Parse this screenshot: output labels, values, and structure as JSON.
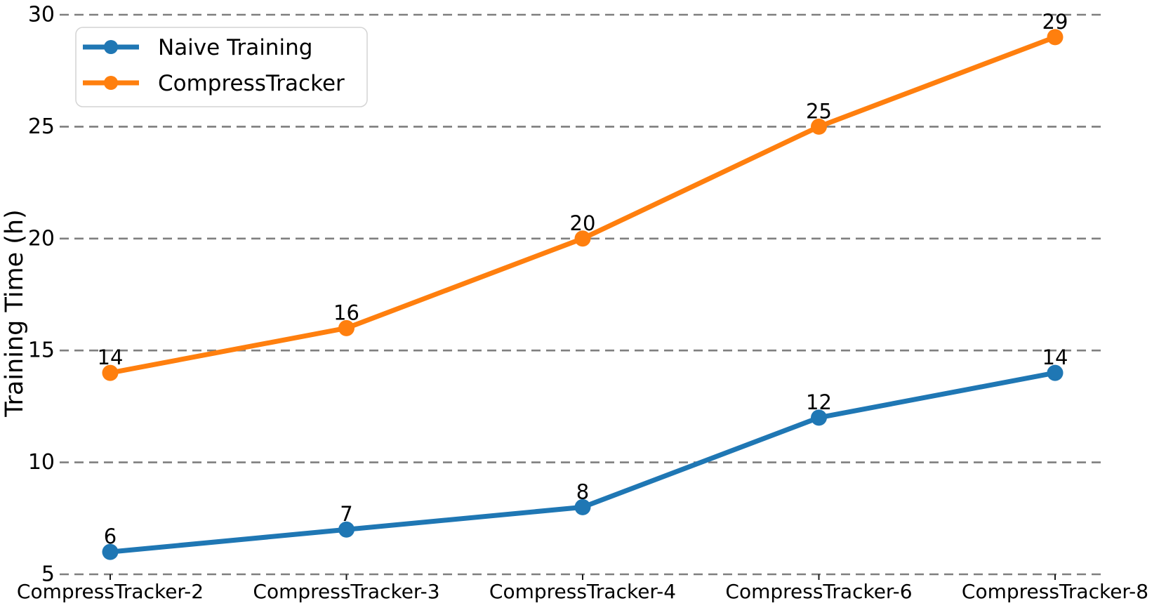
{
  "chart_data": {
    "type": "line",
    "title": "",
    "xlabel": "",
    "ylabel": "Training Time (h)",
    "categories": [
      "CompressTracker-2",
      "CompressTracker-3",
      "CompressTracker-4",
      "CompressTracker-6",
      "CompressTracker-8"
    ],
    "series": [
      {
        "name": "Naive Training",
        "color": "#1f77b4",
        "values": [
          6,
          7,
          8,
          12,
          14
        ]
      },
      {
        "name": "CompressTracker",
        "color": "#ff7f0e",
        "values": [
          14,
          16,
          20,
          25,
          29
        ]
      }
    ],
    "ylim": [
      5,
      30
    ],
    "yticks": [
      5,
      10,
      15,
      20,
      25,
      30
    ],
    "grid": "horizontal dashed gridlines, no spines",
    "grid_color": "#7f7f7f",
    "legend_position": "upper left",
    "point_labels_shown": true,
    "text_color": "#000000",
    "background_color": "#ffffff"
  }
}
